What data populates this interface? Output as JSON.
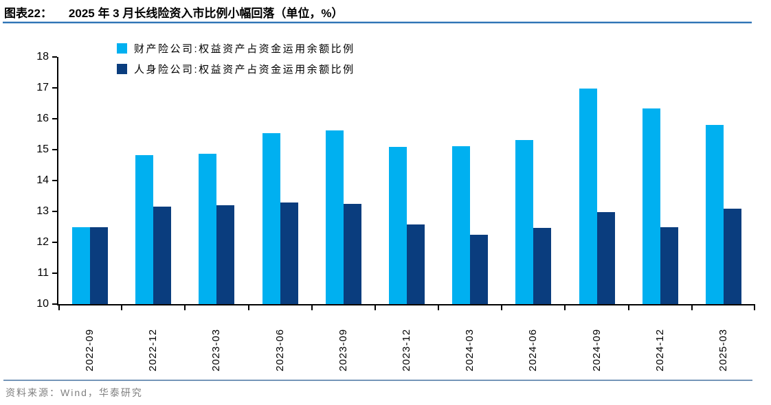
{
  "header": {
    "label": "图表22：",
    "title": "2025 年 3 月长线险资入市比例小幅回落（单位，%）"
  },
  "source": {
    "text": "资料来源：Wind，华泰研究"
  },
  "colors": {
    "series_light": "#00B0F0",
    "series_dark": "#0A3D7E",
    "title_rule": "#2E74B5",
    "footer_rule": "#7495B8",
    "axis": "#000000",
    "source_text": "#7F7F7F"
  },
  "chart_data": {
    "type": "bar",
    "title": "2025 年 3 月长线险资入市比例小幅回落（单位，%）",
    "xlabel": "",
    "ylabel": "",
    "ylim": [
      10,
      18
    ],
    "yticks": [
      10,
      11,
      12,
      13,
      14,
      15,
      16,
      17,
      18
    ],
    "grid": false,
    "legend_position": "top-left",
    "categories": [
      "2022-09",
      "2022-12",
      "2023-03",
      "2023-06",
      "2023-09",
      "2023-12",
      "2024-03",
      "2024-06",
      "2024-09",
      "2024-12",
      "2025-03"
    ],
    "series": [
      {
        "name": "财产险公司:权益资产占资金运用余额比例",
        "color": "#00B0F0",
        "values": [
          12.5,
          14.83,
          14.87,
          15.54,
          15.63,
          15.1,
          15.12,
          15.31,
          16.97,
          16.33,
          15.8
        ]
      },
      {
        "name": "人身险公司:权益资产占资金运用余额比例",
        "color": "#0A3D7E",
        "values": [
          12.5,
          13.15,
          13.2,
          13.3,
          13.25,
          12.58,
          12.24,
          12.47,
          12.97,
          12.49,
          13.08
        ]
      }
    ]
  }
}
